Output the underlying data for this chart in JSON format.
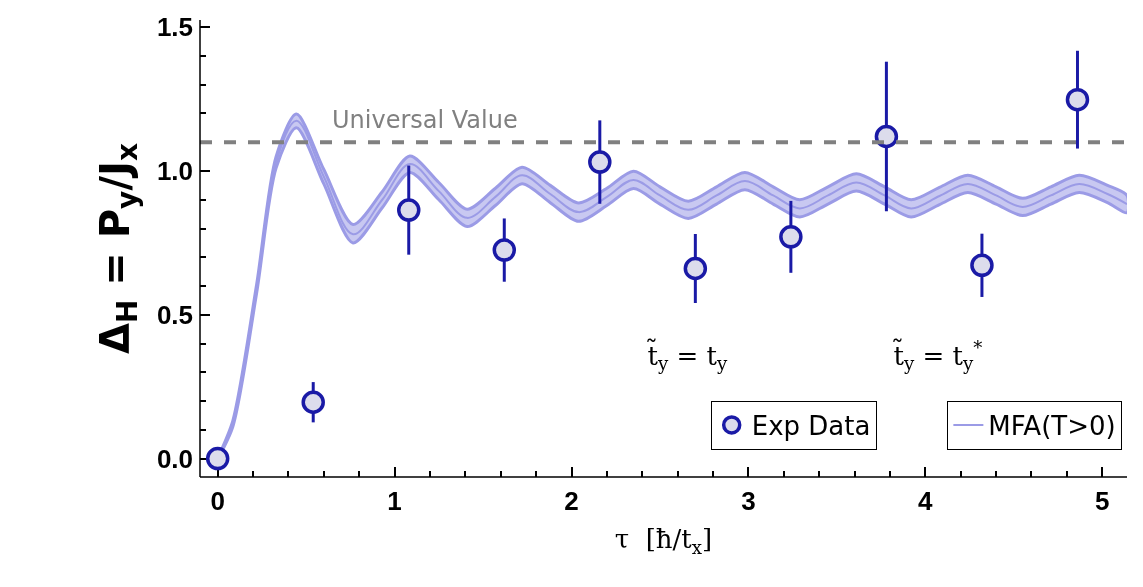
{
  "chart_data": {
    "type": "scatter",
    "xlabel": "τ  [ħ/t$_{x}$]",
    "ylabel": "Δ$_{H}$ = P$_{y}$/J$_{x}$",
    "xlim": [
      -0.1,
      5.14
    ],
    "ylim": [
      -0.064,
      1.525
    ],
    "xticks": [
      0,
      1,
      2,
      3,
      4,
      5,
      {
        "value": 0.2,
        "label": null
      },
      {
        "value": 0.4,
        "label": null
      },
      {
        "value": 0.6,
        "label": null
      },
      {
        "value": 0.8,
        "label": null
      },
      {
        "value": 1.2,
        "label": null
      },
      {
        "value": 1.4,
        "label": null
      },
      {
        "value": 1.6,
        "label": null
      },
      {
        "value": 1.8,
        "label": null
      },
      {
        "value": 2.2,
        "label": null
      },
      {
        "value": 2.4,
        "label": null
      },
      {
        "value": 2.6,
        "label": null
      },
      {
        "value": 2.8,
        "label": null
      },
      {
        "value": 3.2,
        "label": null
      },
      {
        "value": 3.4,
        "label": null
      },
      {
        "value": 3.6,
        "label": null
      },
      {
        "value": 3.8,
        "label": null
      },
      {
        "value": 4.2,
        "label": null
      },
      {
        "value": 4.4,
        "label": null
      },
      {
        "value": 4.6,
        "label": null
      },
      {
        "value": 4.8,
        "label": null
      }
    ],
    "yticks": [
      {
        "value": 0,
        "label": "0.0"
      },
      0.5,
      {
        "value": 1,
        "label": "1.0"
      },
      1.5,
      {
        "value": 0.1,
        "label": null
      },
      {
        "value": 0.2,
        "label": null
      },
      {
        "value": 0.3,
        "label": null
      },
      {
        "value": 0.4,
        "label": null
      },
      {
        "value": 0.6,
        "label": null
      },
      {
        "value": 0.7,
        "label": null
      },
      {
        "value": 0.8,
        "label": null
      },
      {
        "value": 0.9,
        "label": null
      },
      {
        "value": 1.1,
        "label": null
      },
      {
        "value": 1.2,
        "label": null
      },
      {
        "value": 1.3,
        "label": null
      },
      {
        "value": 1.4,
        "label": null
      }
    ],
    "legend": "bottom right",
    "series": [
      {
        "name": "Exp Data",
        "marker": "circle",
        "color": "#1a1aa6",
        "x": [
          0,
          0.54,
          1.08,
          1.62,
          2.16,
          2.7,
          3.24,
          3.78,
          4.32,
          4.86
        ],
        "values": [
          0,
          0.196,
          0.864,
          0.725,
          1.031,
          0.661,
          0.771,
          1.12,
          0.672,
          1.248
        ],
        "errors": [
          null,
          0.07,
          0.155,
          0.11,
          0.145,
          0.12,
          0.125,
          0.26,
          0.11,
          0.17
        ]
      },
      {
        "name": "MFA(T>0)",
        "type": "line",
        "color": "#9b9be6",
        "line_style": "solid",
        "x": [
          0,
          0.085,
          0.22,
          0.33,
          0.445,
          0.6,
          0.765,
          0.93,
          1.086,
          1.25,
          1.41,
          1.57,
          1.72,
          1.88,
          2.04,
          2.2,
          2.35,
          2.5,
          2.66,
          2.82,
          2.98,
          3.14,
          3.29,
          3.45,
          3.61,
          3.77,
          3.92,
          4.08,
          4.24,
          4.4,
          4.55,
          4.71,
          4.87,
          5.03,
          5.14
        ],
        "values": [
          0,
          0.12,
          0.59,
          1.03,
          1.175,
          0.98,
          0.78,
          0.9,
          1.024,
          0.93,
          0.837,
          0.91,
          0.985,
          0.92,
          0.857,
          0.91,
          0.969,
          0.915,
          0.865,
          0.915,
          0.965,
          0.915,
          0.87,
          0.915,
          0.96,
          0.915,
          0.87,
          0.913,
          0.955,
          0.915,
          0.875,
          0.915,
          0.955,
          0.92,
          0.885
        ],
        "lower": [
          0,
          0.11,
          0.575,
          1.01,
          1.15,
          0.955,
          0.75,
          0.872,
          0.995,
          0.9,
          0.807,
          0.88,
          0.956,
          0.89,
          0.825,
          0.88,
          0.939,
          0.885,
          0.835,
          0.885,
          0.935,
          0.885,
          0.84,
          0.885,
          0.93,
          0.885,
          0.84,
          0.883,
          0.925,
          0.885,
          0.845,
          0.885,
          0.925,
          0.89,
          0.855
        ],
        "upper": [
          0,
          0.13,
          0.605,
          1.05,
          1.198,
          1.005,
          0.814,
          0.928,
          1.052,
          0.96,
          0.867,
          0.94,
          1.013,
          0.95,
          0.889,
          0.94,
          0.999,
          0.945,
          0.895,
          0.945,
          0.995,
          0.945,
          0.9,
          0.945,
          0.99,
          0.945,
          0.9,
          0.943,
          0.985,
          0.945,
          0.905,
          0.945,
          0.985,
          0.95,
          0.915
        ]
      }
    ],
    "ref_lines": [
      {
        "axis": "y",
        "value": 1.1,
        "label": "Universal Value",
        "color": "#808080",
        "line_style": "dashed"
      }
    ],
    "annotations": [
      "t̃$_{y}$ = t$_{y}$",
      "t̃$_{y}$ = t$_{y}$$^{*}$"
    ]
  }
}
